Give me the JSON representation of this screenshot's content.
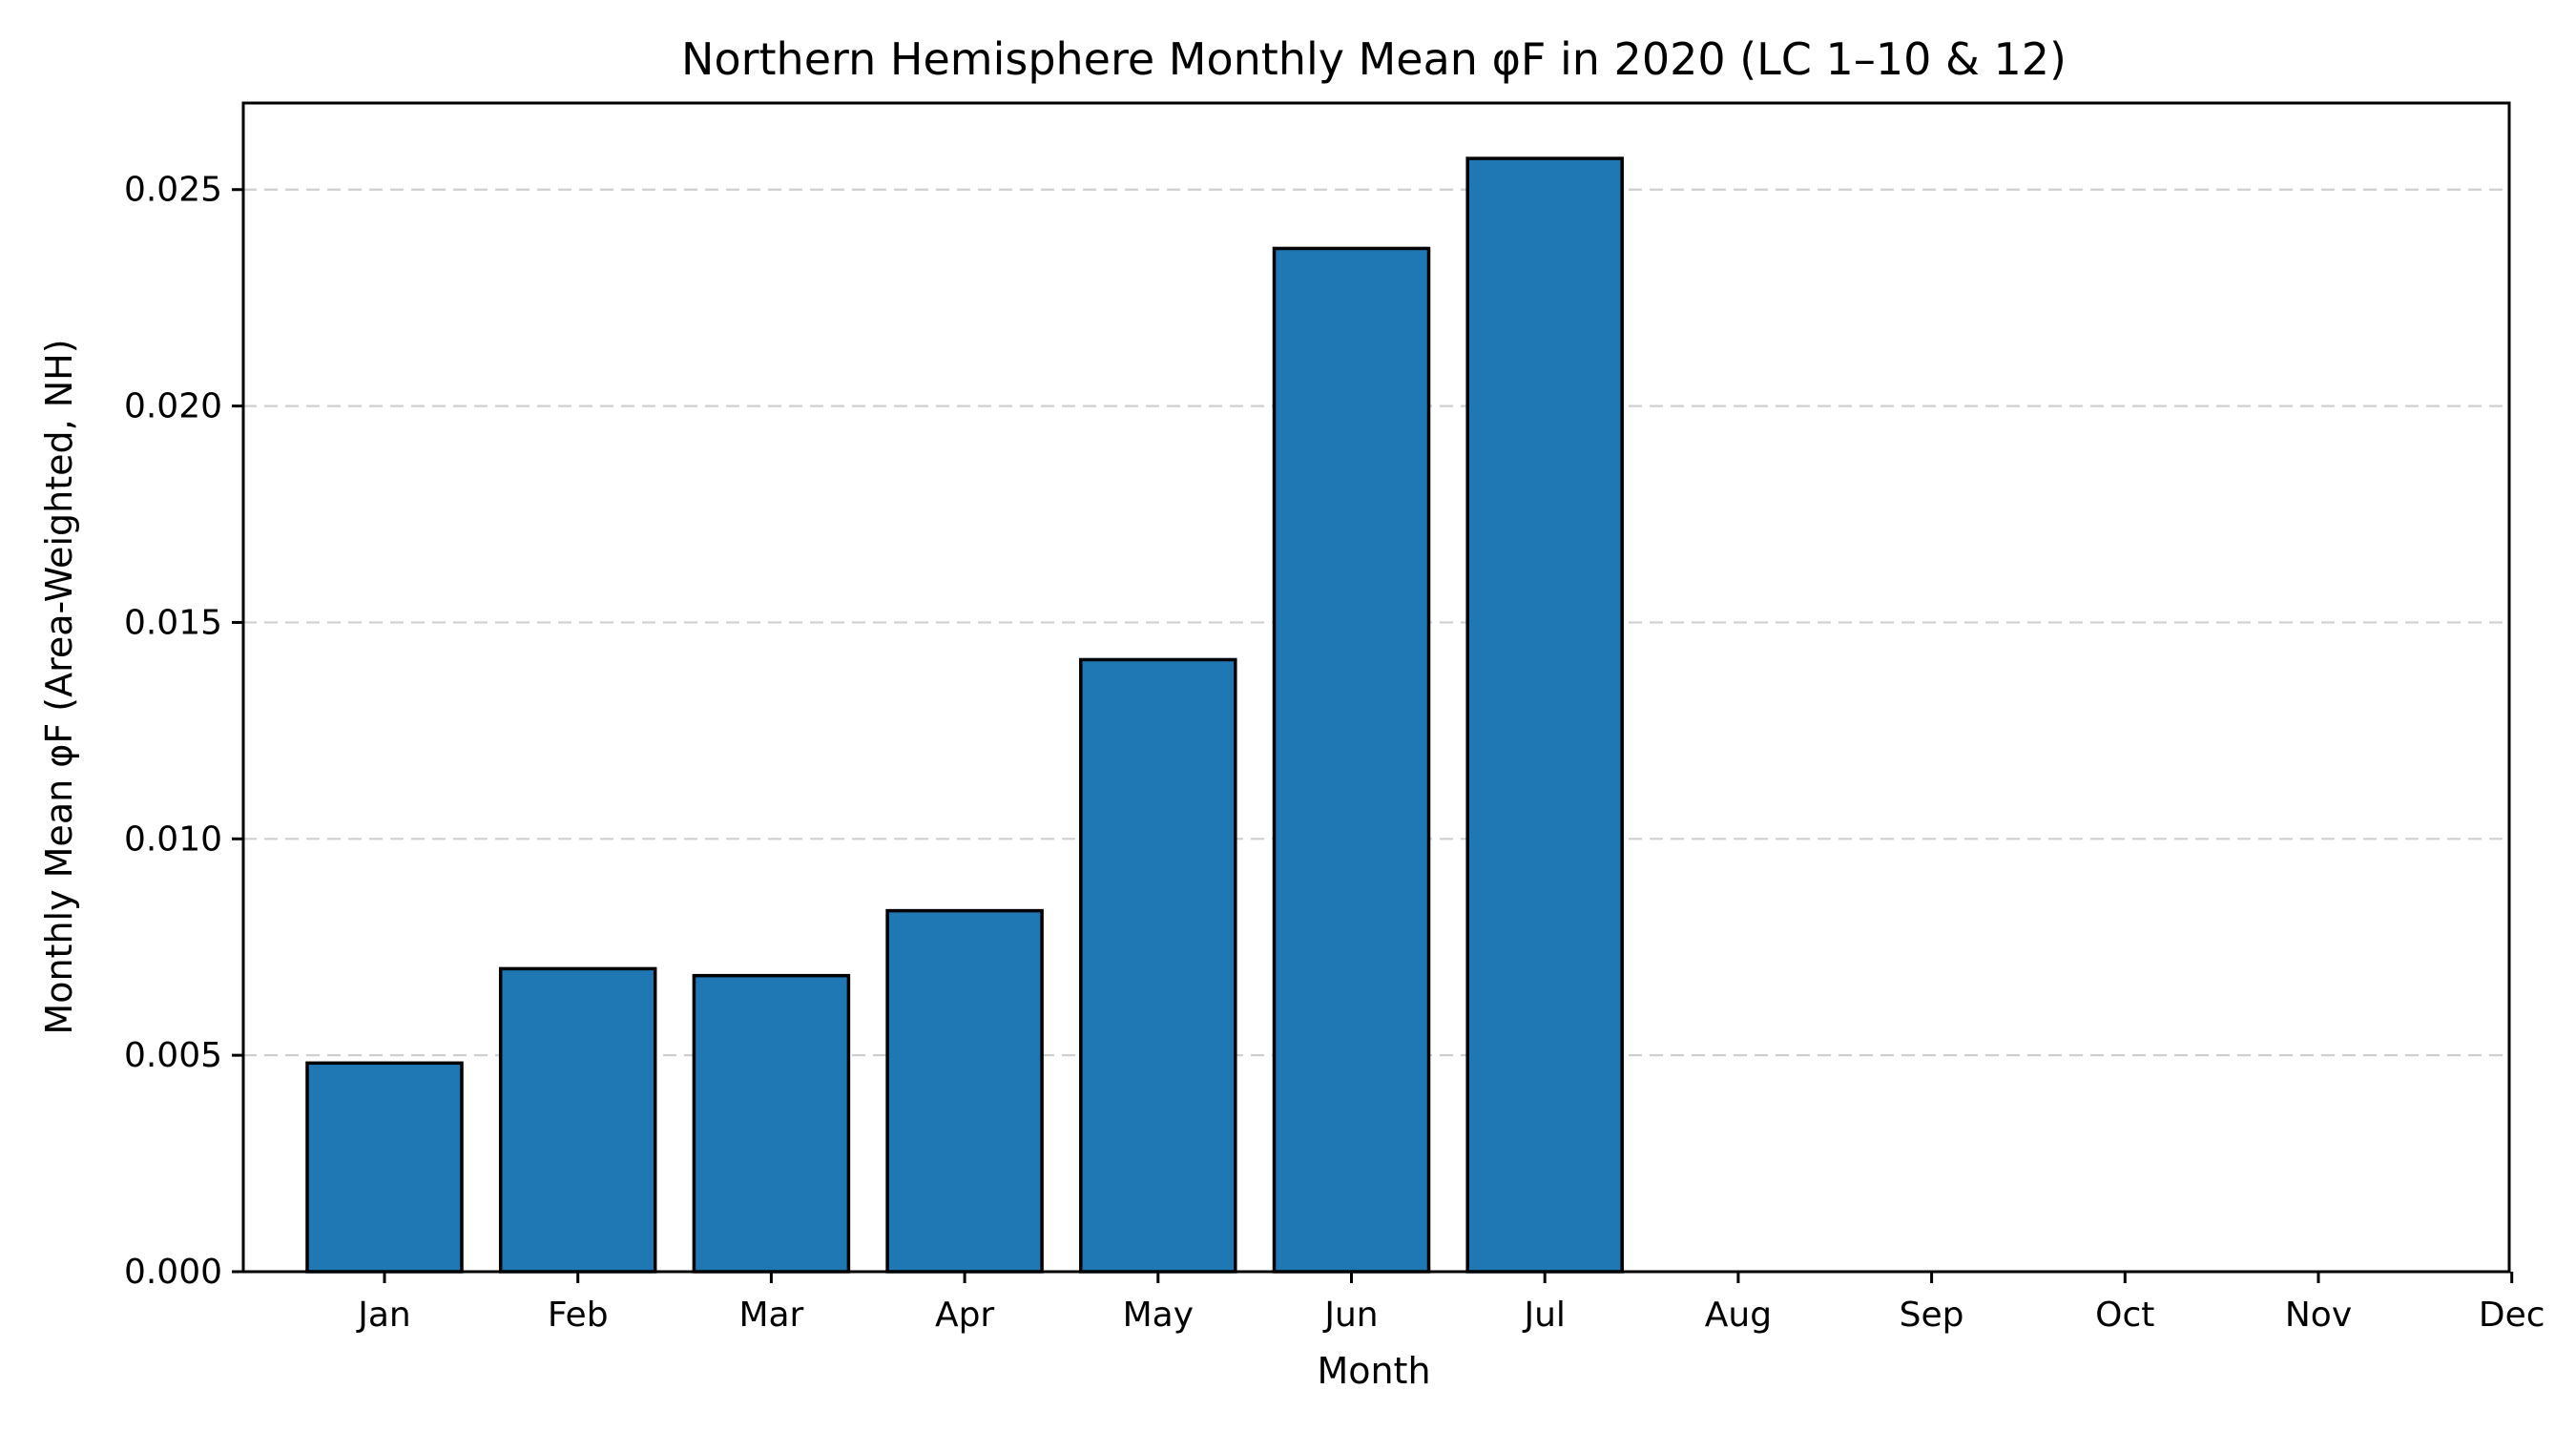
{
  "chart_data": {
    "type": "bar",
    "title": "Northern Hemisphere Monthly Mean φF in 2020 (LC 1–10 & 12)",
    "xlabel": "Month",
    "ylabel": "Monthly Mean φF (Area-Weighted, NH)",
    "categories": [
      "Jan",
      "Feb",
      "Mar",
      "Apr",
      "May",
      "Jun",
      "Jul",
      "Aug",
      "Sep",
      "Oct",
      "Nov",
      "Dec"
    ],
    "values": [
      0.00482,
      0.007,
      0.00684,
      0.00834,
      0.01414,
      0.02364,
      0.02572,
      null,
      null,
      null,
      null,
      null
    ],
    "ylim": [
      0,
      0.027
    ],
    "yticks": [
      0.0,
      0.005,
      0.01,
      0.015,
      0.02,
      0.025
    ],
    "ytick_labels": [
      "0.000",
      "0.005",
      "0.010",
      "0.015",
      "0.020",
      "0.025"
    ],
    "grid": "y-dashed",
    "bar_color": "#1f77b4",
    "edge_color": "#000000"
  }
}
